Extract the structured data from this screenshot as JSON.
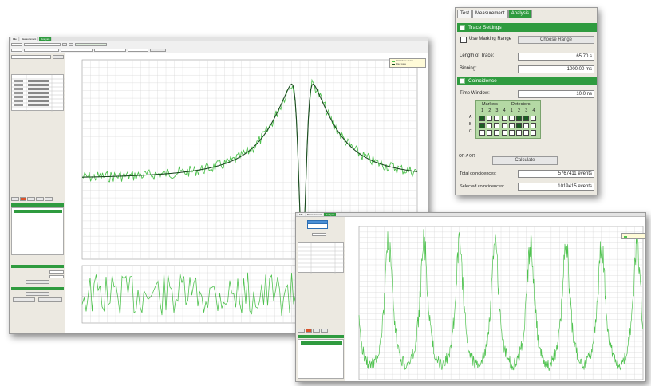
{
  "main_window": {
    "tabs": [
      "File",
      "Measurement",
      "Analysis"
    ],
    "legend": [
      "Coincidence counts",
      "Fitted curve"
    ],
    "colors": {
      "accent": "#2f9b3f",
      "data": "#4fc24f",
      "fit": "#1d4a22",
      "grid": "#d8d8d8"
    }
  },
  "coincidence_panel": {
    "tabs": [
      "Test",
      "Measurement",
      "Analysis"
    ],
    "active_tab": "Analysis",
    "sections": {
      "trace_settings": "Trace Settings",
      "coincidence": "Coincidence"
    },
    "use_marking_range_label": "Use Marking Range",
    "choose_range_button": "Choose Range",
    "length_of_trace_label": "Length of Trace:",
    "length_of_trace_value": "65.70 s",
    "binning_label": "Binning:",
    "binning_value": "1000.00 ms",
    "time_window_label": "Time Window:",
    "time_window_value": "10.0 ns",
    "markers_label": "Markers",
    "detectors_label": "Detectors",
    "marker_columns": [
      "1",
      "2",
      "3",
      "4"
    ],
    "detector_columns": [
      "1",
      "2",
      "3",
      "4"
    ],
    "row_labels": [
      "A",
      "B",
      "C"
    ],
    "or_label": "OR A OR",
    "calculate_button": "Calculate",
    "total_events_label": "Total coincidences:",
    "total_events_value": "5767411 events",
    "selected_events_label": "Selected coincidences:",
    "selected_events_value": "1019415 events"
  },
  "checkbox_states": [
    [
      true,
      false,
      false,
      false,
      false,
      true,
      true,
      false
    ],
    [
      true,
      false,
      false,
      false,
      false,
      true,
      false,
      false
    ],
    [
      false,
      false,
      false,
      false,
      false,
      false,
      false,
      false
    ]
  ]
}
